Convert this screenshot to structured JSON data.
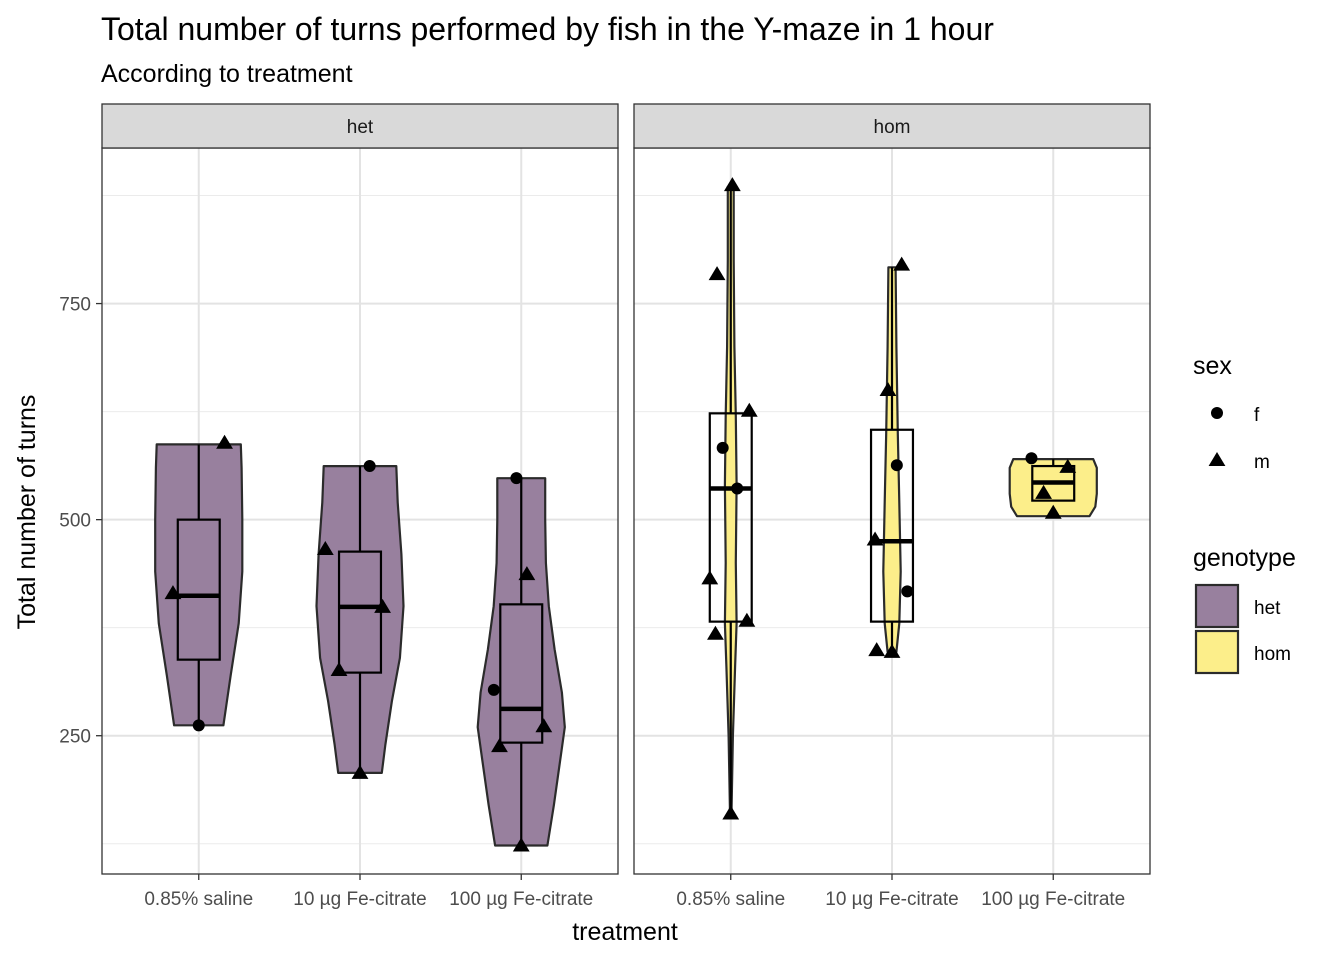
{
  "chart_data": {
    "type": "violin",
    "title": "Total number of turns performed by fish in the Y-maze in 1 hour",
    "subtitle": "According to treatment",
    "xlabel": "treatment",
    "ylabel": "Total number of turns",
    "ylim": [
      90,
      930
    ],
    "yticks": [
      250,
      500,
      750
    ],
    "categories": [
      "0.85% saline",
      "10 µg Fe-citrate",
      "100 µg Fe-citrate"
    ],
    "grid": true,
    "legend_position": "right",
    "legends": {
      "sex": {
        "title": "sex",
        "entries": [
          {
            "label": "f",
            "shape": "circle"
          },
          {
            "label": "m",
            "shape": "triangle"
          }
        ]
      },
      "genotype": {
        "title": "genotype",
        "entries": [
          {
            "label": "het",
            "color": "#98809e"
          },
          {
            "label": "hom",
            "color": "#fcee8a"
          }
        ]
      }
    },
    "facets": [
      {
        "label": "het",
        "fill": "#98809e",
        "groups": [
          {
            "treatment": "0.85% saline",
            "box": {
              "lower": 338,
              "q1": 338,
              "median": 412,
              "q3": 500,
              "upper": 500,
              "whisker_low": 262,
              "whisker_high": 587
            },
            "violin": [
              [
                262,
                0.34
              ],
              [
                285,
                0.38
              ],
              [
                320,
                0.44
              ],
              [
                380,
                0.55
              ],
              [
                440,
                0.6
              ],
              [
                500,
                0.6
              ],
              [
                560,
                0.59
              ],
              [
                587,
                0.58
              ]
            ],
            "points": [
              {
                "y": 415,
                "sex": "m",
                "jitter": -0.32
              },
              {
                "y": 589,
                "sex": "m",
                "jitter": 0.32
              },
              {
                "y": 262,
                "sex": "f",
                "jitter": 0.0
              }
            ]
          },
          {
            "treatment": "10 µg Fe-citrate",
            "box": {
              "q1": 323,
              "median": 399,
              "q3": 463,
              "whisker_low": 207,
              "whisker_high": 562
            },
            "violin": [
              [
                207,
                0.3
              ],
              [
                240,
                0.35
              ],
              [
                290,
                0.44
              ],
              [
                340,
                0.55
              ],
              [
                400,
                0.6
              ],
              [
                460,
                0.57
              ],
              [
                520,
                0.52
              ],
              [
                562,
                0.5
              ]
            ],
            "points": [
              {
                "y": 466,
                "sex": "m",
                "jitter": -0.43
              },
              {
                "y": 326,
                "sex": "m",
                "jitter": -0.26
              },
              {
                "y": 399,
                "sex": "m",
                "jitter": 0.28
              },
              {
                "y": 562,
                "sex": "f",
                "jitter": 0.12
              },
              {
                "y": 207,
                "sex": "m",
                "jitter": 0.0
              }
            ]
          },
          {
            "treatment": "100 µg Fe-citrate",
            "box": {
              "q1": 242,
              "median": 281,
              "q3": 402,
              "whisker_low": 123,
              "whisker_high": 548
            },
            "violin": [
              [
                123,
                0.36
              ],
              [
                170,
                0.45
              ],
              [
                230,
                0.55
              ],
              [
                260,
                0.6
              ],
              [
                300,
                0.56
              ],
              [
                350,
                0.46
              ],
              [
                400,
                0.38
              ],
              [
                450,
                0.34
              ],
              [
                500,
                0.33
              ],
              [
                548,
                0.33
              ]
            ],
            "points": [
              {
                "y": 303,
                "sex": "f",
                "jitter": -0.34
              },
              {
                "y": 238,
                "sex": "m",
                "jitter": -0.27
              },
              {
                "y": 437,
                "sex": "m",
                "jitter": 0.07
              },
              {
                "y": 261,
                "sex": "m",
                "jitter": 0.28
              },
              {
                "y": 548,
                "sex": "f",
                "jitter": -0.06
              },
              {
                "y": 123,
                "sex": "m",
                "jitter": 0.0
              }
            ]
          }
        ]
      },
      {
        "label": "hom",
        "fill": "#fcee8a",
        "groups": [
          {
            "treatment": "0.85% saline",
            "box": {
              "q1": 382,
              "median": 536,
              "q3": 623,
              "whisker_low": 160,
              "whisker_high": 885
            },
            "violin": [
              [
                160,
                0.01
              ],
              [
                250,
                0.03
              ],
              [
                330,
                0.06
              ],
              [
                380,
                0.08
              ],
              [
                450,
                0.07
              ],
              [
                540,
                0.08
              ],
              [
                620,
                0.07
              ],
              [
                700,
                0.05
              ],
              [
                800,
                0.04
              ],
              [
                885,
                0.04
              ]
            ],
            "points": [
              {
                "y": 784,
                "sex": "m",
                "jitter": -0.17
              },
              {
                "y": 432,
                "sex": "m",
                "jitter": -0.26
              },
              {
                "y": 368,
                "sex": "m",
                "jitter": -0.19
              },
              {
                "y": 583,
                "sex": "f",
                "jitter": -0.1
              },
              {
                "y": 536,
                "sex": "f",
                "jitter": 0.08
              },
              {
                "y": 626,
                "sex": "m",
                "jitter": 0.23
              },
              {
                "y": 383,
                "sex": "m",
                "jitter": 0.2
              },
              {
                "y": 887,
                "sex": "m",
                "jitter": 0.02
              },
              {
                "y": 160,
                "sex": "m",
                "jitter": 0.0
              }
            ]
          },
          {
            "treatment": "10 µg Fe-citrate",
            "box": {
              "q1": 382,
              "median": 475,
              "q3": 604,
              "whisker_low": 347,
              "whisker_high": 792
            },
            "violin": [
              [
                347,
                0.06
              ],
              [
                380,
                0.1
              ],
              [
                440,
                0.12
              ],
              [
                520,
                0.1
              ],
              [
                600,
                0.08
              ],
              [
                700,
                0.06
              ],
              [
                792,
                0.05
              ]
            ],
            "points": [
              {
                "y": 477,
                "sex": "m",
                "jitter": -0.21
              },
              {
                "y": 650,
                "sex": "m",
                "jitter": -0.05
              },
              {
                "y": 795,
                "sex": "m",
                "jitter": 0.12
              },
              {
                "y": 563,
                "sex": "f",
                "jitter": 0.06
              },
              {
                "y": 417,
                "sex": "f",
                "jitter": 0.19
              },
              {
                "y": 349,
                "sex": "m",
                "jitter": -0.19
              },
              {
                "y": 347,
                "sex": "m",
                "jitter": 0.0
              }
            ]
          },
          {
            "treatment": "100 µg Fe-citrate",
            "box": {
              "q1": 522,
              "median": 543,
              "q3": 562,
              "whisker_low": 522,
              "whisker_high": 570
            },
            "violin": [
              [
                504,
                0.5
              ],
              [
                515,
                0.58
              ],
              [
                530,
                0.6
              ],
              [
                545,
                0.6
              ],
              [
                560,
                0.6
              ],
              [
                570,
                0.55
              ]
            ],
            "points": [
              {
                "y": 571,
                "sex": "f",
                "jitter": -0.27
              },
              {
                "y": 531,
                "sex": "m",
                "jitter": -0.12
              },
              {
                "y": 561,
                "sex": "m",
                "jitter": 0.18
              },
              {
                "y": 508,
                "sex": "m",
                "jitter": 0.0
              }
            ]
          }
        ]
      }
    ]
  }
}
